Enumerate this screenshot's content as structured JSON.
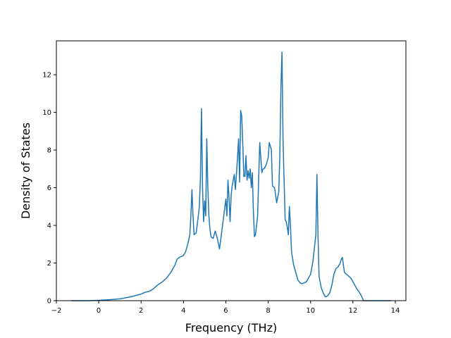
{
  "chart_data": {
    "type": "line",
    "title": "",
    "xlabel": "Frequency (THz)",
    "ylabel": "Density of States",
    "xlim": [
      -2,
      14.5
    ],
    "ylim": [
      0,
      13.8
    ],
    "xticks": [
      -2,
      0,
      2,
      4,
      6,
      8,
      10,
      12,
      14
    ],
    "yticks": [
      0,
      2,
      4,
      6,
      8,
      10,
      12
    ],
    "grid": false,
    "legend": "none",
    "colors": {
      "line": "#1f77b4",
      "axes": "#000000",
      "background": "#ffffff"
    },
    "series": [
      {
        "x": [
          -1.3,
          -0.5,
          0.0,
          0.5,
          1.0,
          1.5,
          2.0,
          2.2,
          2.4,
          2.6,
          2.8,
          3.0,
          3.2,
          3.4,
          3.6,
          3.7,
          3.8,
          4.0,
          4.1,
          4.2,
          4.3,
          4.35,
          4.4,
          4.45,
          4.5,
          4.6,
          4.7,
          4.75,
          4.8,
          4.85,
          4.9,
          4.95,
          5.0,
          5.05,
          5.1,
          5.15,
          5.2,
          5.25,
          5.3,
          5.4,
          5.5,
          5.6,
          5.7,
          5.8,
          5.9,
          6.0,
          6.05,
          6.1,
          6.15,
          6.2,
          6.25,
          6.3,
          6.4,
          6.45,
          6.5,
          6.55,
          6.6,
          6.65,
          6.7,
          6.75,
          6.8,
          6.85,
          6.9,
          6.95,
          7.0,
          7.05,
          7.1,
          7.15,
          7.2,
          7.25,
          7.3,
          7.35,
          7.4,
          7.5,
          7.6,
          7.7,
          7.75,
          7.8,
          7.85,
          7.9,
          8.0,
          8.05,
          8.1,
          8.15,
          8.2,
          8.3,
          8.4,
          8.5,
          8.55,
          8.6,
          8.65,
          8.7,
          8.8,
          8.85,
          8.9,
          8.95,
          9.0,
          9.05,
          9.1,
          9.2,
          9.3,
          9.4,
          9.5,
          9.6,
          9.7,
          9.8,
          9.9,
          10.0,
          10.1,
          10.2,
          10.25,
          10.3,
          10.35,
          10.4,
          10.5,
          10.6,
          10.7,
          10.8,
          10.9,
          11.0,
          11.1,
          11.2,
          11.3,
          11.4,
          11.45,
          11.5,
          11.6,
          11.7,
          11.8,
          11.9,
          12.0,
          12.1,
          12.2,
          12.3,
          12.4,
          12.5,
          12.6,
          13.0,
          13.8
        ],
        "y": [
          0.0,
          0.0,
          0.02,
          0.05,
          0.1,
          0.2,
          0.35,
          0.45,
          0.5,
          0.65,
          0.85,
          1.0,
          1.2,
          1.5,
          1.9,
          2.2,
          2.3,
          2.4,
          2.6,
          3.0,
          3.5,
          4.5,
          5.9,
          4.5,
          3.5,
          3.6,
          4.5,
          5.0,
          6.5,
          10.2,
          6.0,
          4.2,
          5.3,
          4.5,
          8.6,
          6.0,
          4.5,
          3.8,
          3.4,
          3.3,
          3.7,
          3.3,
          2.75,
          3.6,
          4.5,
          5.4,
          4.5,
          6.4,
          5.5,
          4.2,
          5.6,
          6.1,
          6.7,
          5.9,
          6.7,
          7.6,
          8.6,
          6.3,
          10.1,
          9.8,
          8.3,
          6.6,
          6.6,
          7.7,
          6.4,
          6.9,
          6.5,
          7.0,
          6.0,
          6.8,
          4.8,
          3.4,
          3.5,
          4.5,
          8.4,
          6.8,
          7.0,
          7.0,
          7.1,
          7.2,
          7.6,
          8.4,
          8.2,
          8.0,
          6.1,
          6.0,
          5.2,
          5.8,
          7.8,
          11.3,
          13.2,
          8.5,
          4.3,
          4.2,
          3.9,
          3.5,
          5.0,
          4.0,
          2.6,
          1.9,
          1.5,
          1.1,
          0.95,
          0.9,
          0.95,
          1.0,
          1.2,
          1.4,
          2.0,
          3.0,
          3.5,
          6.7,
          3.5,
          1.3,
          0.7,
          0.4,
          0.2,
          0.25,
          0.4,
          0.8,
          1.4,
          1.7,
          1.8,
          2.0,
          2.2,
          2.3,
          1.5,
          1.4,
          1.3,
          1.2,
          1.0,
          0.8,
          0.6,
          0.45,
          0.25,
          0.0,
          0.0,
          0.0,
          0.0
        ]
      }
    ]
  }
}
